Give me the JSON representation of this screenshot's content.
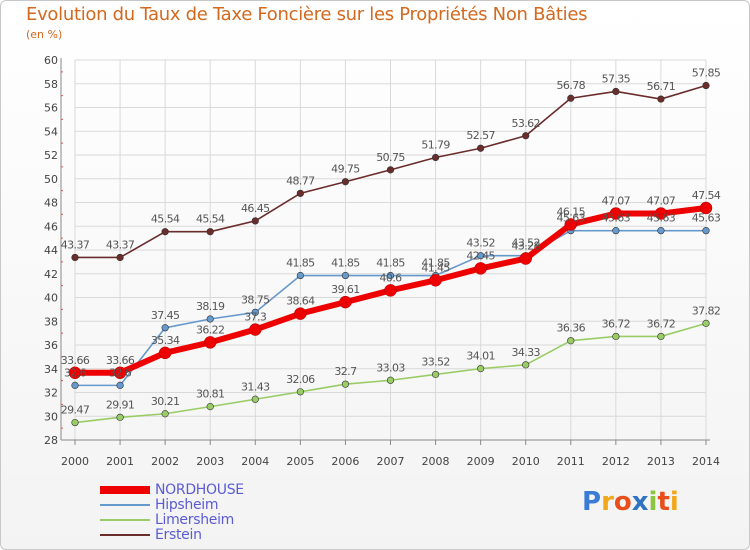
{
  "title": "Evolution du Taux de Taxe Foncière sur les Propriétés Non Bâties",
  "unit_label": "(en %)",
  "logo": {
    "text": "Proxiti",
    "letters": [
      {
        "ch": "P",
        "color": "#3a7bd5"
      },
      {
        "ch": "r",
        "color": "#f2a81d"
      },
      {
        "ch": "o",
        "color": "#e94e1b"
      },
      {
        "ch": "x",
        "color": "#2f74c0"
      },
      {
        "ch": "i",
        "color": "#8cc63f"
      },
      {
        "ch": "t",
        "color": "#e94e1b"
      },
      {
        "ch": "i",
        "color": "#f2a81d"
      }
    ]
  },
  "chart_data": {
    "type": "line",
    "title": "Evolution du Taux de Taxe Foncière sur les Propriétés Non Bâties",
    "ylabel": "(en %)",
    "xlabel": "",
    "x": [
      "2000",
      "2001",
      "2002",
      "2003",
      "2004",
      "2005",
      "2006",
      "2007",
      "2008",
      "2009",
      "2010",
      "2011",
      "2012",
      "2013",
      "2014"
    ],
    "ylim": [
      28,
      60
    ],
    "yticks": [
      "28",
      "30",
      "32",
      "34",
      "36",
      "38",
      "40",
      "42",
      "44",
      "46",
      "48",
      "50",
      "52",
      "54",
      "56",
      "58",
      "60"
    ],
    "grid": true,
    "legend_position": "bottom-left",
    "series": [
      {
        "name": "NORDHOUSE",
        "color": "#ee0000",
        "values": [
          33.66,
          33.66,
          35.34,
          36.22,
          37.3,
          38.64,
          39.61,
          40.6,
          41.45,
          42.45,
          43.28,
          46.15,
          47.07,
          47.07,
          47.54
        ],
        "labels": [
          "33.66",
          "33.66",
          "35.34",
          "36.22",
          "37.3",
          "38.64",
          "39.61",
          "40.6",
          "41.45",
          "42.45",
          "43.28",
          "46.15",
          "47.07",
          "47.07",
          "47.54"
        ]
      },
      {
        "name": "Hipsheim",
        "color": "#6699cc",
        "values": [
          32.6,
          32.6,
          37.45,
          38.19,
          38.75,
          41.85,
          41.85,
          41.85,
          41.85,
          43.52,
          43.52,
          45.63,
          45.63,
          45.63,
          45.63
        ],
        "labels": [
          "32.6",
          "32.6",
          "37.45",
          "38.19",
          "38.75",
          "41.85",
          "41.85",
          "41.85",
          "41.85",
          "43.52",
          "43.52",
          "45.63",
          "45.63",
          "45.63",
          "45.63"
        ]
      },
      {
        "name": "Limersheim",
        "color": "#99cc66",
        "values": [
          29.47,
          29.91,
          30.21,
          30.81,
          31.43,
          32.06,
          32.7,
          33.03,
          33.52,
          34.01,
          34.33,
          36.36,
          36.72,
          36.72,
          37.82
        ],
        "labels": [
          "29.47",
          "29.91",
          "30.21",
          "30.81",
          "31.43",
          "32.06",
          "32.7",
          "33.03",
          "33.52",
          "34.01",
          "34.33",
          "36.36",
          "36.72",
          "36.72",
          "37.82"
        ]
      },
      {
        "name": "Erstein",
        "color": "#6b2c2c",
        "values": [
          43.37,
          43.37,
          45.54,
          45.54,
          46.45,
          48.77,
          49.75,
          50.75,
          51.79,
          52.57,
          53.62,
          56.78,
          57.35,
          56.71,
          57.85
        ],
        "labels": [
          "43.37",
          "43.37",
          "45.54",
          "45.54",
          "46.45",
          "48.77",
          "49.75",
          "50.75",
          "51.79",
          "52.57",
          "53.62",
          "56.78",
          "57.35",
          "56.71",
          "57.85"
        ]
      }
    ]
  }
}
